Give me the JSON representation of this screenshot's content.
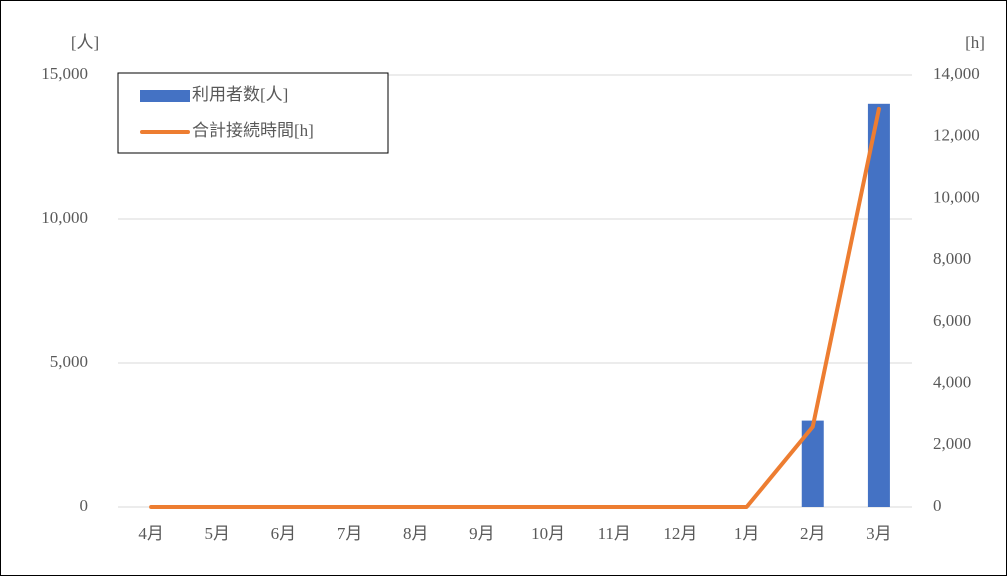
{
  "chart_data": {
    "type": "bar-line",
    "y_label": "[人]",
    "y2_label": "[h]",
    "categories": [
      "4月",
      "5月",
      "6月",
      "7月",
      "8月",
      "9月",
      "10月",
      "11月",
      "12月",
      "1月",
      "2月",
      "3月"
    ],
    "series": [
      {
        "name": "利用者数[人]",
        "type": "bar",
        "color": "#4472c4",
        "axis": "y",
        "values": [
          0,
          0,
          0,
          0,
          0,
          0,
          0,
          0,
          0,
          0,
          3000,
          14000
        ]
      },
      {
        "name": "合計接続時間[h]",
        "type": "line",
        "color": "#ed7d31",
        "axis": "y2",
        "values": [
          0,
          0,
          0,
          0,
          0,
          0,
          0,
          0,
          0,
          0,
          2600,
          12900
        ]
      }
    ],
    "ylim": [
      0,
      15000
    ],
    "yticks": [
      0,
      {
        "value": 5000,
        "label": "5,000"
      },
      {
        "value": 10000,
        "label": "10,000"
      },
      {
        "value": 15000,
        "label": "15,000"
      }
    ],
    "y2lim": [
      0,
      14000
    ],
    "y2ticks": [
      0,
      {
        "value": 2000,
        "label": "2,000"
      },
      {
        "value": 4000,
        "label": "4,000"
      },
      {
        "value": 6000,
        "label": "6,000"
      },
      {
        "value": 8000,
        "label": "8,000"
      },
      {
        "value": 10000,
        "label": "10,000"
      },
      {
        "value": 12000,
        "label": "12,000"
      },
      {
        "value": 14000,
        "label": "14,000"
      }
    ],
    "grid": true,
    "legend": "top-left"
  }
}
